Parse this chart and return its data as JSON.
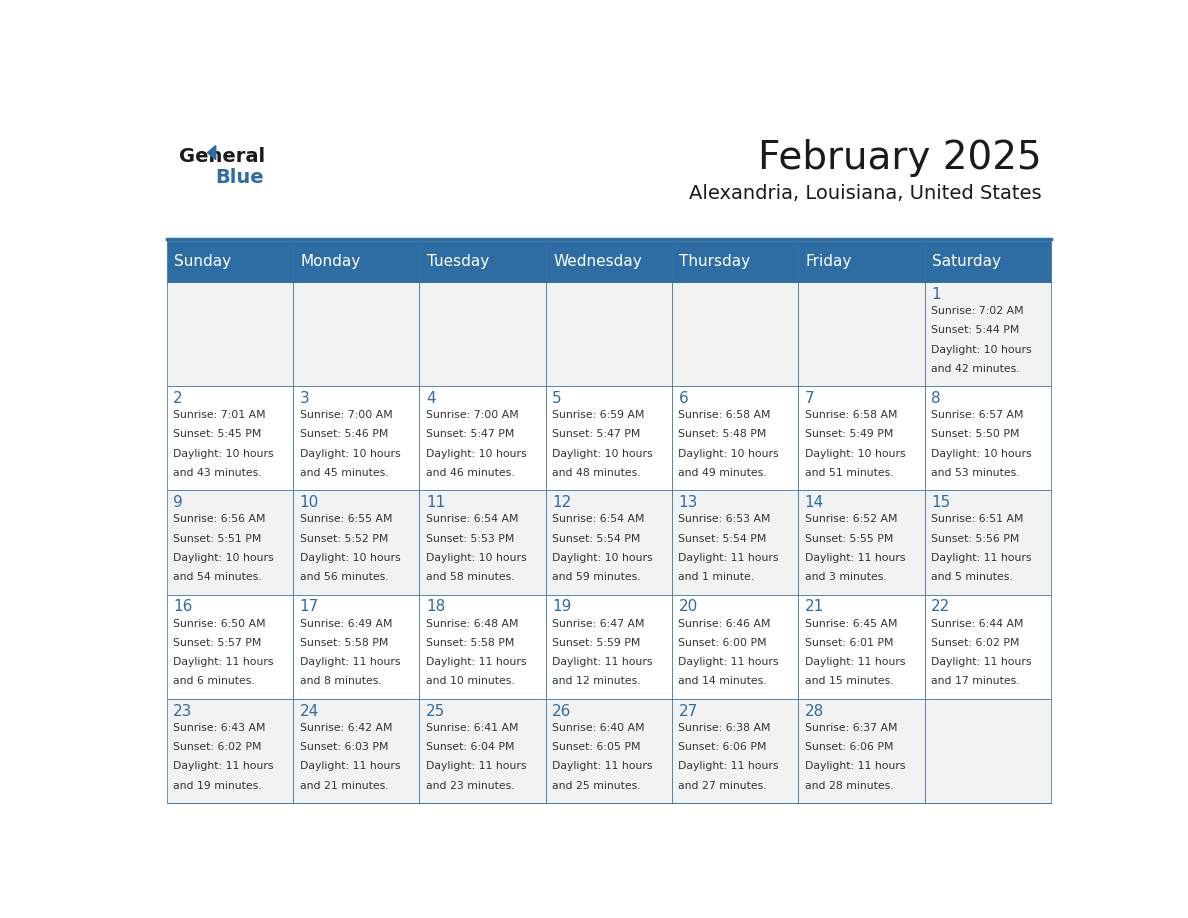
{
  "title": "February 2025",
  "subtitle": "Alexandria, Louisiana, United States",
  "days_of_week": [
    "Sunday",
    "Monday",
    "Tuesday",
    "Wednesday",
    "Thursday",
    "Friday",
    "Saturday"
  ],
  "header_bg": "#2E6DA4",
  "header_text": "#FFFFFF",
  "cell_bg_light": "#F2F2F2",
  "cell_bg_white": "#FFFFFF",
  "border_color": "#2E6DA4",
  "day_num_color": "#2E6DA4",
  "text_color": "#333333",
  "title_color": "#1a1a1a",
  "logo_general_color": "#1a1a1a",
  "logo_blue_color": "#2E6DA4",
  "calendar_data": [
    [
      {
        "day": null,
        "info": null
      },
      {
        "day": null,
        "info": null
      },
      {
        "day": null,
        "info": null
      },
      {
        "day": null,
        "info": null
      },
      {
        "day": null,
        "info": null
      },
      {
        "day": null,
        "info": null
      },
      {
        "day": 1,
        "info": "Sunrise: 7:02 AM\nSunset: 5:44 PM\nDaylight: 10 hours\nand 42 minutes."
      }
    ],
    [
      {
        "day": 2,
        "info": "Sunrise: 7:01 AM\nSunset: 5:45 PM\nDaylight: 10 hours\nand 43 minutes."
      },
      {
        "day": 3,
        "info": "Sunrise: 7:00 AM\nSunset: 5:46 PM\nDaylight: 10 hours\nand 45 minutes."
      },
      {
        "day": 4,
        "info": "Sunrise: 7:00 AM\nSunset: 5:47 PM\nDaylight: 10 hours\nand 46 minutes."
      },
      {
        "day": 5,
        "info": "Sunrise: 6:59 AM\nSunset: 5:47 PM\nDaylight: 10 hours\nand 48 minutes."
      },
      {
        "day": 6,
        "info": "Sunrise: 6:58 AM\nSunset: 5:48 PM\nDaylight: 10 hours\nand 49 minutes."
      },
      {
        "day": 7,
        "info": "Sunrise: 6:58 AM\nSunset: 5:49 PM\nDaylight: 10 hours\nand 51 minutes."
      },
      {
        "day": 8,
        "info": "Sunrise: 6:57 AM\nSunset: 5:50 PM\nDaylight: 10 hours\nand 53 minutes."
      }
    ],
    [
      {
        "day": 9,
        "info": "Sunrise: 6:56 AM\nSunset: 5:51 PM\nDaylight: 10 hours\nand 54 minutes."
      },
      {
        "day": 10,
        "info": "Sunrise: 6:55 AM\nSunset: 5:52 PM\nDaylight: 10 hours\nand 56 minutes."
      },
      {
        "day": 11,
        "info": "Sunrise: 6:54 AM\nSunset: 5:53 PM\nDaylight: 10 hours\nand 58 minutes."
      },
      {
        "day": 12,
        "info": "Sunrise: 6:54 AM\nSunset: 5:54 PM\nDaylight: 10 hours\nand 59 minutes."
      },
      {
        "day": 13,
        "info": "Sunrise: 6:53 AM\nSunset: 5:54 PM\nDaylight: 11 hours\nand 1 minute."
      },
      {
        "day": 14,
        "info": "Sunrise: 6:52 AM\nSunset: 5:55 PM\nDaylight: 11 hours\nand 3 minutes."
      },
      {
        "day": 15,
        "info": "Sunrise: 6:51 AM\nSunset: 5:56 PM\nDaylight: 11 hours\nand 5 minutes."
      }
    ],
    [
      {
        "day": 16,
        "info": "Sunrise: 6:50 AM\nSunset: 5:57 PM\nDaylight: 11 hours\nand 6 minutes."
      },
      {
        "day": 17,
        "info": "Sunrise: 6:49 AM\nSunset: 5:58 PM\nDaylight: 11 hours\nand 8 minutes."
      },
      {
        "day": 18,
        "info": "Sunrise: 6:48 AM\nSunset: 5:58 PM\nDaylight: 11 hours\nand 10 minutes."
      },
      {
        "day": 19,
        "info": "Sunrise: 6:47 AM\nSunset: 5:59 PM\nDaylight: 11 hours\nand 12 minutes."
      },
      {
        "day": 20,
        "info": "Sunrise: 6:46 AM\nSunset: 6:00 PM\nDaylight: 11 hours\nand 14 minutes."
      },
      {
        "day": 21,
        "info": "Sunrise: 6:45 AM\nSunset: 6:01 PM\nDaylight: 11 hours\nand 15 minutes."
      },
      {
        "day": 22,
        "info": "Sunrise: 6:44 AM\nSunset: 6:02 PM\nDaylight: 11 hours\nand 17 minutes."
      }
    ],
    [
      {
        "day": 23,
        "info": "Sunrise: 6:43 AM\nSunset: 6:02 PM\nDaylight: 11 hours\nand 19 minutes."
      },
      {
        "day": 24,
        "info": "Sunrise: 6:42 AM\nSunset: 6:03 PM\nDaylight: 11 hours\nand 21 minutes."
      },
      {
        "day": 25,
        "info": "Sunrise: 6:41 AM\nSunset: 6:04 PM\nDaylight: 11 hours\nand 23 minutes."
      },
      {
        "day": 26,
        "info": "Sunrise: 6:40 AM\nSunset: 6:05 PM\nDaylight: 11 hours\nand 25 minutes."
      },
      {
        "day": 27,
        "info": "Sunrise: 6:38 AM\nSunset: 6:06 PM\nDaylight: 11 hours\nand 27 minutes."
      },
      {
        "day": 28,
        "info": "Sunrise: 6:37 AM\nSunset: 6:06 PM\nDaylight: 11 hours\nand 28 minutes."
      },
      {
        "day": null,
        "info": null
      }
    ]
  ]
}
